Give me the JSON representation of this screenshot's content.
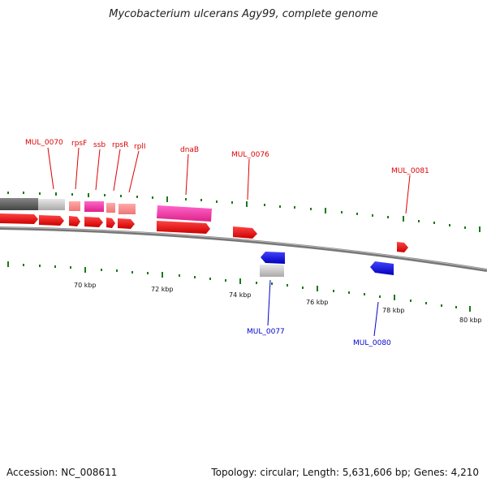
{
  "title": "Mycobacterium ulcerans Agy99, complete genome",
  "footer": {
    "accession": "Accession: NC_008611",
    "summary": "Topology: circular; Length: 5,631,606 bp; Genes: 4,210"
  },
  "colors": {
    "forward_label": "#dd0000",
    "reverse_label": "#0000cc",
    "cds_forward": "#ee1111",
    "cds_reverse": "#1111dd",
    "tick": "#1a7a1a",
    "backbone": "#777777"
  },
  "gene_labels": {
    "forward": [
      "MUL_0070",
      "rpsF",
      "ssb",
      "rpsR",
      "rplI",
      "dnaB",
      "MUL_0076",
      "MUL_0081"
    ],
    "reverse": [
      "MUL_0077",
      "MUL_0080"
    ]
  },
  "ruler": {
    "unit": "kbp",
    "labels": [
      "70 kbp",
      "72 kbp",
      "74 kbp",
      "76 kbp",
      "78 kbp",
      "80 kbp"
    ]
  }
}
